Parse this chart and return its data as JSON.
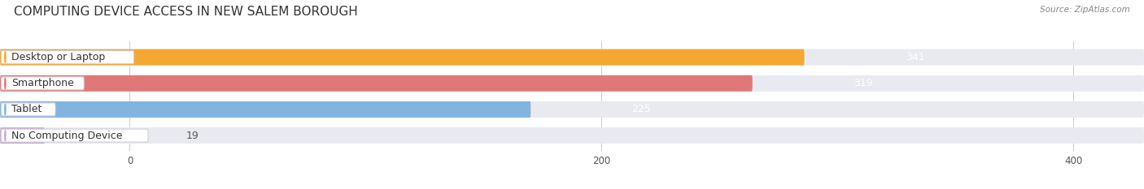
{
  "title": "COMPUTING DEVICE ACCESS IN NEW SALEM BOROUGH",
  "source": "Source: ZipAtlas.com",
  "categories": [
    "Desktop or Laptop",
    "Smartphone",
    "Tablet",
    "No Computing Device"
  ],
  "values": [
    341,
    319,
    225,
    19
  ],
  "bar_colors": [
    "#f5a831",
    "#e07878",
    "#82b4e0",
    "#c8aad4"
  ],
  "xlim_left": -55,
  "xlim_right": 430,
  "data_min": 0,
  "data_max": 400,
  "xticks": [
    0,
    200,
    400
  ],
  "figsize": [
    14.06,
    2.33
  ],
  "dpi": 100,
  "title_fontsize": 11,
  "label_fontsize": 9,
  "value_fontsize": 9,
  "background_color": "#ffffff",
  "track_color": "#e8eaf0",
  "bar_height": 0.62,
  "bar_gap": 0.38
}
